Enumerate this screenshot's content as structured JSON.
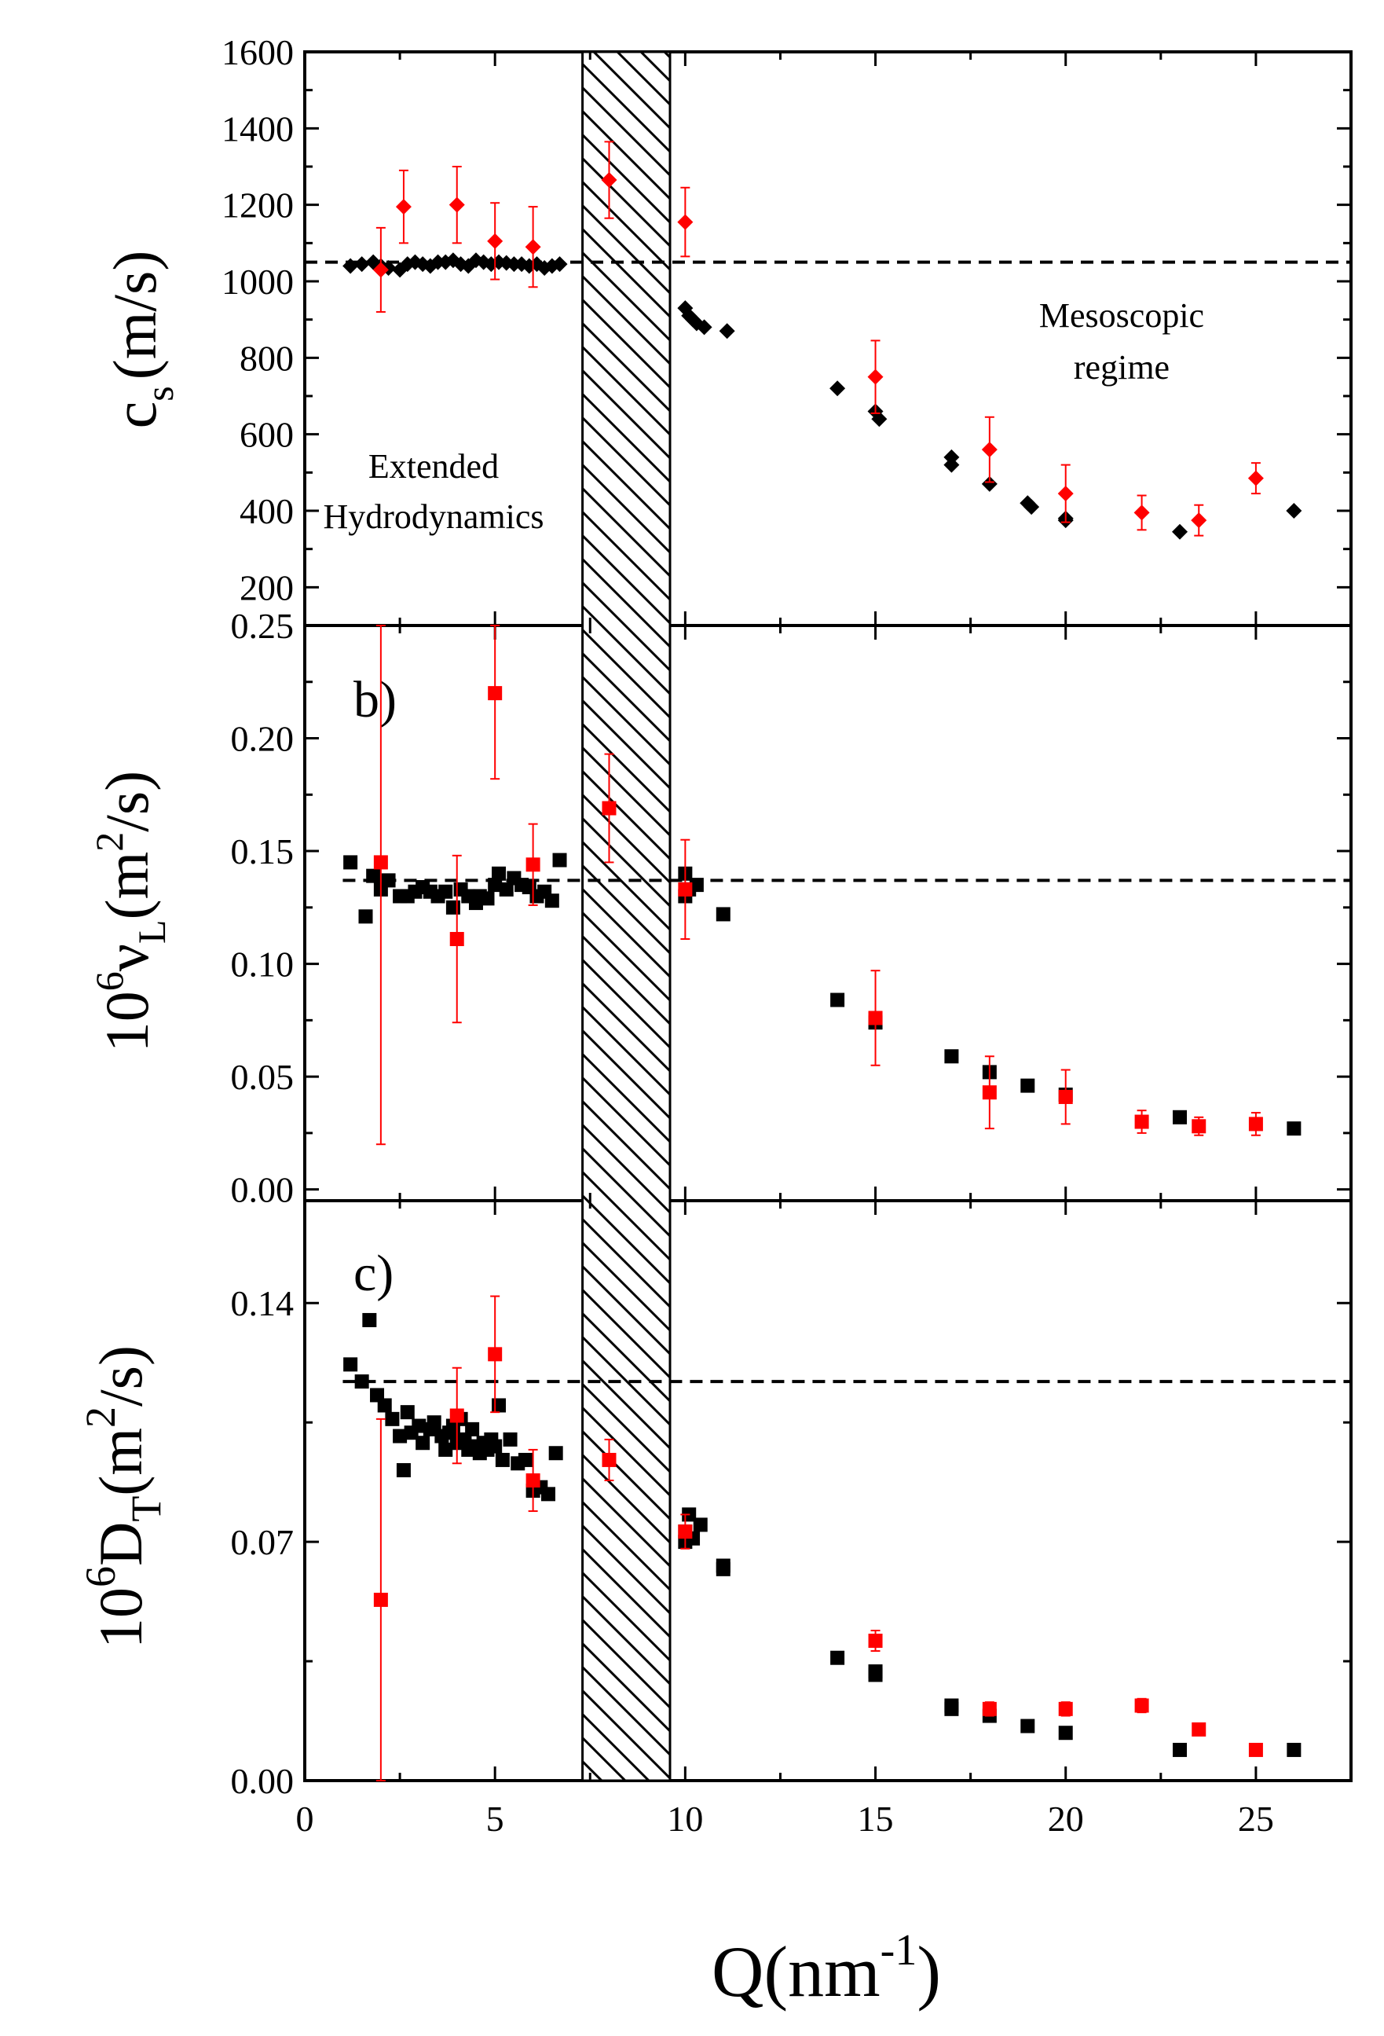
{
  "figure": {
    "xlabel_main": "Q(nm",
    "xlabel_sup": "-1",
    "xlabel_close": ")"
  },
  "hatch_band": {
    "x_range": [
      7.3,
      9.6
    ]
  },
  "chart_data": [
    {
      "type": "scatter",
      "id": "panel-a",
      "ylabel": {
        "main": "c",
        "sub": "s",
        "tail": "(m/s)"
      },
      "xlim": [
        0,
        27.5
      ],
      "ylim": [
        100,
        1600
      ],
      "x_ticks": [
        0,
        5,
        10,
        15,
        20,
        25
      ],
      "y_ticks": [
        200,
        400,
        600,
        800,
        1000,
        1200,
        1400,
        1600
      ],
      "y_tick_labels": [
        "200",
        "400",
        "600",
        "800",
        "1000",
        "1200",
        "1400",
        "1600"
      ],
      "dashed_line": {
        "value": 1050,
        "x_from": 0
      },
      "annotations": [
        {
          "lines": [
            "Extended",
            "Hydrodynamics"
          ],
          "x": 3.4,
          "y": 420
        },
        {
          "lines": [
            "Mesoscopic",
            "regime"
          ],
          "x": 21.5,
          "y": 830
        }
      ],
      "series": [
        {
          "name": "black",
          "marker": "diamond",
          "color": "#000000",
          "x": [
            1.2,
            1.5,
            1.8,
            2.0,
            2.2,
            2.5,
            2.7,
            2.9,
            3.1,
            3.3,
            3.5,
            3.7,
            3.9,
            4.1,
            4.3,
            4.5,
            4.7,
            4.9,
            5.1,
            5.3,
            5.5,
            5.7,
            5.9,
            6.1,
            6.3,
            6.5,
            6.7,
            10.0,
            10.1,
            10.2,
            10.3,
            10.5,
            11.1,
            14.0,
            15.0,
            15.1,
            17.0,
            17.0,
            18.0,
            19.0,
            19.1,
            20.0,
            20.0,
            23.0,
            26.0
          ],
          "y": [
            1040,
            1045,
            1050,
            1040,
            1035,
            1030,
            1045,
            1050,
            1045,
            1040,
            1050,
            1050,
            1055,
            1045,
            1040,
            1055,
            1050,
            1045,
            1050,
            1048,
            1045,
            1045,
            1040,
            1045,
            1035,
            1040,
            1045,
            930,
            910,
            900,
            890,
            880,
            870,
            720,
            660,
            640,
            540,
            520,
            470,
            420,
            410,
            380,
            375,
            345,
            400
          ]
        },
        {
          "name": "red",
          "marker": "diamond",
          "color": "#ff0000",
          "x": [
            2.0,
            2.6,
            4.0,
            5.0,
            6.0,
            8.0,
            10.0,
            15.0,
            18.0,
            20.0,
            22.0,
            23.5,
            25.0
          ],
          "y": [
            1030,
            1195,
            1200,
            1105,
            1090,
            1265,
            1155,
            750,
            560,
            445,
            395,
            375,
            485
          ],
          "err": [
            110,
            95,
            100,
            100,
            105,
            100,
            90,
            95,
            85,
            75,
            45,
            40,
            40
          ]
        }
      ]
    },
    {
      "type": "scatter",
      "id": "panel-b",
      "panel_label": "b)",
      "ylabel": {
        "lead": "10",
        "sup": "6",
        "sym": "ν",
        "sub": "L",
        "tail": "(m",
        "sup2": "2",
        "tail2": "/s)"
      },
      "xlim": [
        0,
        27.5
      ],
      "ylim": [
        -0.005,
        0.25
      ],
      "x_ticks": [
        0,
        5,
        10,
        15,
        20,
        25
      ],
      "y_ticks": [
        0.0,
        0.05,
        0.1,
        0.15,
        0.2,
        0.25
      ],
      "y_tick_labels": [
        "0.00",
        "0.05",
        "0.10",
        "0.15",
        "0.20",
        "0.25"
      ],
      "dashed_line": {
        "value": 0.137,
        "x_from": 1.0
      },
      "series": [
        {
          "name": "black",
          "marker": "square",
          "color": "#000000",
          "x": [
            1.2,
            1.6,
            1.8,
            2.0,
            2.2,
            2.5,
            2.7,
            2.9,
            3.1,
            3.3,
            3.5,
            3.7,
            3.9,
            4.1,
            4.3,
            4.5,
            4.6,
            4.8,
            5.0,
            5.1,
            5.3,
            5.5,
            5.7,
            5.9,
            6.1,
            6.3,
            6.5,
            6.7,
            10.0,
            10.0,
            10.1,
            10.3,
            11.0,
            14.0,
            15.0,
            17.0,
            18.0,
            19.0,
            20.0,
            23.0,
            26.0
          ],
          "y": [
            0.145,
            0.121,
            0.139,
            0.133,
            0.137,
            0.13,
            0.13,
            0.132,
            0.134,
            0.132,
            0.13,
            0.132,
            0.125,
            0.133,
            0.13,
            0.127,
            0.13,
            0.129,
            0.135,
            0.14,
            0.133,
            0.138,
            0.135,
            0.134,
            0.13,
            0.132,
            0.128,
            0.146,
            0.13,
            0.14,
            0.133,
            0.135,
            0.122,
            0.084,
            0.074,
            0.059,
            0.052,
            0.046,
            0.042,
            0.032,
            0.027
          ],
          "err": null
        },
        {
          "name": "red",
          "marker": "square",
          "color": "#ff0000",
          "x": [
            2.0,
            4.0,
            5.0,
            6.0,
            8.0,
            10.0,
            15.0,
            18.0,
            20.0,
            22.0,
            23.5,
            25.0
          ],
          "y": [
            0.145,
            0.111,
            0.22,
            0.144,
            0.169,
            0.133,
            0.076,
            0.043,
            0.041,
            0.03,
            0.028,
            0.029
          ],
          "err": [
            0.125,
            0.037,
            0.038,
            0.018,
            0.024,
            0.022,
            0.021,
            0.016,
            0.012,
            0.005,
            0.004,
            0.005
          ]
        }
      ]
    },
    {
      "type": "scatter",
      "id": "panel-c",
      "panel_label": "c)",
      "ylabel": {
        "lead": "10",
        "sup": "6",
        "sym": "D",
        "sub": "T",
        "tail": "(m",
        "sup2": "2",
        "tail2": "/s)"
      },
      "xlim": [
        0,
        27.5
      ],
      "ylim": [
        0.0,
        0.17
      ],
      "x_ticks": [
        0,
        5,
        10,
        15,
        20,
        25
      ],
      "x_tick_labels": [
        "0",
        "5",
        "10",
        "15",
        "20",
        "25"
      ],
      "y_ticks": [
        0.0,
        0.07,
        0.14
      ],
      "y_tick_labels": [
        "0.00",
        "0.07",
        "0.14"
      ],
      "dashed_line": {
        "value": 0.117,
        "x_from": 1.0
      },
      "series": [
        {
          "name": "black",
          "marker": "square",
          "color": "#000000",
          "x": [
            1.2,
            1.5,
            1.7,
            1.9,
            2.1,
            2.3,
            2.5,
            2.6,
            2.7,
            2.8,
            3.0,
            3.1,
            3.3,
            3.4,
            3.6,
            3.7,
            3.8,
            3.9,
            4.0,
            4.1,
            4.2,
            4.3,
            4.4,
            4.5,
            4.6,
            4.7,
            4.8,
            4.9,
            5.0,
            5.1,
            5.2,
            5.4,
            5.6,
            5.8,
            6.0,
            6.2,
            6.4,
            6.6,
            10.0,
            10.0,
            10.1,
            10.2,
            10.4,
            11.0,
            11.0,
            14.0,
            15.0,
            15.0,
            17.0,
            17.0,
            18.0,
            19.0,
            20.0,
            23.0,
            26.0
          ],
          "y": [
            0.122,
            0.117,
            0.135,
            0.113,
            0.11,
            0.106,
            0.101,
            0.091,
            0.108,
            0.102,
            0.104,
            0.099,
            0.103,
            0.105,
            0.101,
            0.097,
            0.102,
            0.104,
            0.099,
            0.106,
            0.1,
            0.097,
            0.103,
            0.098,
            0.096,
            0.099,
            0.097,
            0.1,
            0.098,
            0.11,
            0.094,
            0.1,
            0.093,
            0.094,
            0.085,
            0.086,
            0.084,
            0.096,
            0.07,
            0.073,
            0.078,
            0.071,
            0.075,
            0.062,
            0.063,
            0.036,
            0.031,
            0.032,
            0.022,
            0.021,
            0.019,
            0.016,
            0.014,
            0.009,
            0.009
          ],
          "err": null
        },
        {
          "name": "red",
          "marker": "square",
          "color": "#ff0000",
          "x": [
            2.0,
            4.0,
            5.0,
            6.0,
            8.0,
            10.0,
            15.0,
            18.0,
            20.0,
            22.0,
            23.5,
            25.0
          ],
          "y": [
            0.053,
            0.107,
            0.125,
            0.088,
            0.094,
            0.073,
            0.041,
            0.021,
            0.021,
            0.022,
            0.015,
            0.009
          ],
          "err": [
            0.053,
            0.014,
            0.017,
            0.009,
            0.006,
            0.005,
            0.003,
            0.002,
            0.002,
            0.002,
            0.001,
            0.001
          ]
        }
      ]
    }
  ]
}
